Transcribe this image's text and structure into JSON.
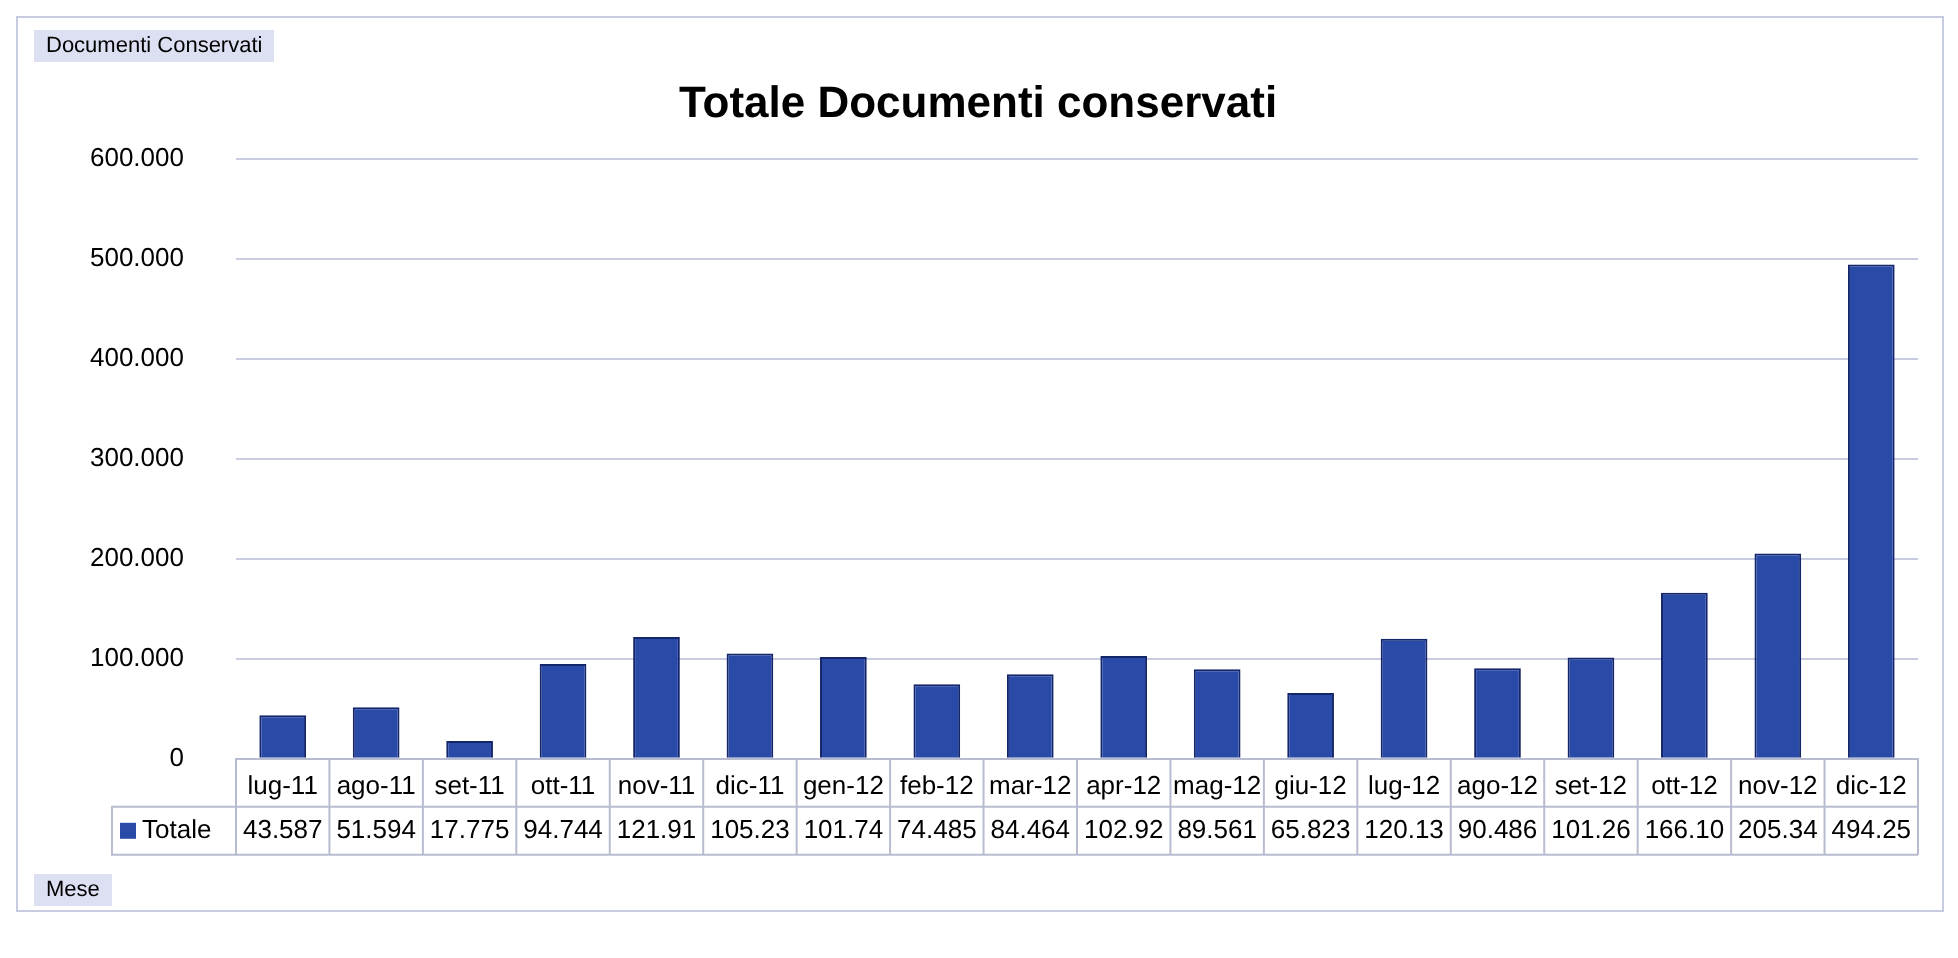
{
  "chart_data": {
    "type": "bar",
    "title": "Totale Documenti conservati",
    "categories": [
      "lug-11",
      "ago-11",
      "set-11",
      "ott-11",
      "nov-11",
      "dic-11",
      "gen-12",
      "feb-12",
      "mar-12",
      "apr-12",
      "mag-12",
      "giu-12",
      "lug-12",
      "ago-12",
      "set-12",
      "ott-12",
      "nov-12",
      "dic-12"
    ],
    "series": [
      {
        "name": "Totale",
        "color": "#2a4aa8",
        "values": [
          43.587,
          51.594,
          17.775,
          94.744,
          121.91,
          105.23,
          101.74,
          74.485,
          84.464,
          102.92,
          89.561,
          65.823,
          120.13,
          90.486,
          101.26,
          166.1,
          205.34,
          494.25
        ],
        "value_labels": [
          "43.587",
          "51.594",
          "17.775",
          "94.744",
          "121.91",
          "105.23",
          "101.74",
          "74.485",
          "84.464",
          "102.92",
          "89.561",
          "65.823",
          "120.13",
          "90.486",
          "101.26",
          "166.10",
          "205.34",
          "494.25"
        ]
      }
    ],
    "ylim": [
      0,
      600
    ],
    "yticks": [
      0,
      {
        "value": 100,
        "label": "100.000"
      },
      {
        "value": 200,
        "label": "200.000"
      },
      {
        "value": 300,
        "label": "300.000"
      },
      {
        "value": 400,
        "label": "400.000"
      },
      {
        "value": 500,
        "label": "500.000"
      },
      {
        "value": 600,
        "label": "600.000"
      }
    ],
    "grid": "y",
    "annotations": [
      "Documenti Conservati",
      "Mese"
    ]
  }
}
